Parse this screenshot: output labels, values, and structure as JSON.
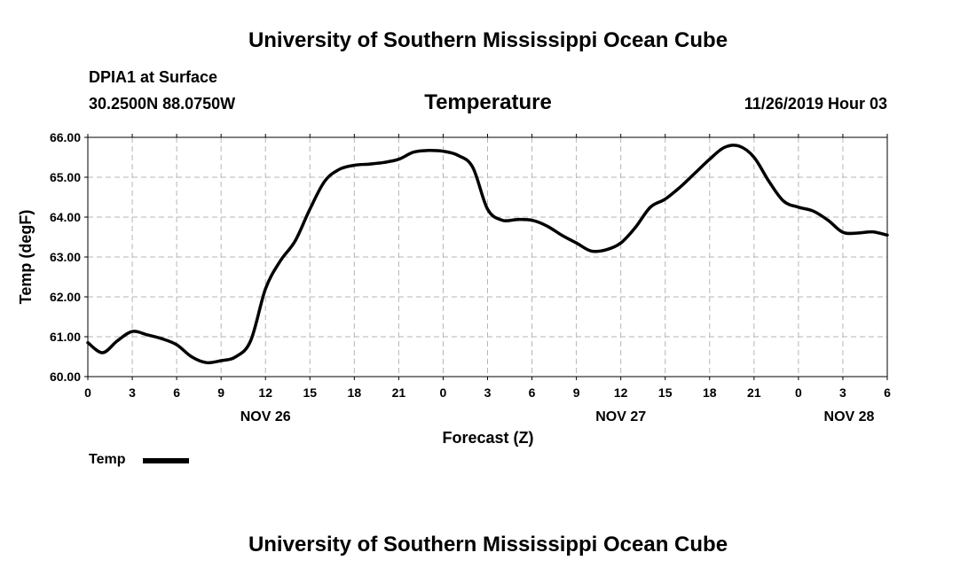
{
  "header": {
    "title_top": "University of Southern Mississippi Ocean Cube",
    "station": "DPIA1 at Surface",
    "location": "30.2500N 88.0750W",
    "timestamp": "11/26/2019 Hour 03",
    "title_bottom": "University of Southern Mississippi Ocean Cube"
  },
  "chart_data": {
    "type": "line",
    "title": "Temperature",
    "xlabel": "Forecast (Z)",
    "ylabel": "Temp (degF)",
    "ylim": [
      60,
      66
    ],
    "xlim": [
      0,
      54
    ],
    "grid": true,
    "legend_placement": "bottom-left",
    "y_ticks": [
      "60.00",
      "61.00",
      "62.00",
      "63.00",
      "64.00",
      "65.00",
      "66.00"
    ],
    "x_ticks": [
      {
        "hour": 0,
        "label": "0"
      },
      {
        "hour": 3,
        "label": "3"
      },
      {
        "hour": 6,
        "label": "6"
      },
      {
        "hour": 9,
        "label": "9"
      },
      {
        "hour": 12,
        "label": "12"
      },
      {
        "hour": 15,
        "label": "15"
      },
      {
        "hour": 18,
        "label": "18"
      },
      {
        "hour": 21,
        "label": "21"
      },
      {
        "hour": 24,
        "label": "0"
      },
      {
        "hour": 27,
        "label": "3"
      },
      {
        "hour": 30,
        "label": "6"
      },
      {
        "hour": 33,
        "label": "9"
      },
      {
        "hour": 36,
        "label": "12"
      },
      {
        "hour": 39,
        "label": "15"
      },
      {
        "hour": 42,
        "label": "18"
      },
      {
        "hour": 45,
        "label": "21"
      },
      {
        "hour": 48,
        "label": "0"
      },
      {
        "hour": 51,
        "label": "3"
      },
      {
        "hour": 54,
        "label": "6"
      }
    ],
    "date_labels": [
      {
        "hour": 12,
        "label": "NOV 26"
      },
      {
        "hour": 36,
        "label": "NOV 27"
      },
      {
        "hour": 54,
        "label": "NOV 28"
      }
    ],
    "series": [
      {
        "name": "Temp",
        "color": "#000000",
        "x": [
          0,
          1,
          2,
          3,
          4,
          5,
          6,
          7,
          8,
          9,
          10,
          11,
          12,
          13,
          14,
          15,
          16,
          17,
          18,
          19,
          20,
          21,
          22,
          23,
          24,
          25,
          26,
          27,
          28,
          29,
          30,
          31,
          32,
          33,
          34,
          35,
          36,
          37,
          38,
          39,
          40,
          41,
          42,
          43,
          44,
          45,
          46,
          47,
          48,
          49,
          50,
          51,
          52,
          53,
          54
        ],
        "values": [
          60.85,
          60.6,
          60.9,
          61.13,
          61.05,
          60.95,
          60.8,
          60.5,
          60.35,
          60.4,
          60.5,
          60.9,
          62.2,
          62.9,
          63.4,
          64.2,
          64.9,
          65.2,
          65.3,
          65.33,
          65.37,
          65.45,
          65.63,
          65.67,
          65.65,
          65.55,
          65.25,
          64.2,
          63.92,
          63.94,
          63.92,
          63.78,
          63.55,
          63.35,
          63.15,
          63.18,
          63.35,
          63.75,
          64.25,
          64.45,
          64.75,
          65.1,
          65.45,
          65.75,
          65.78,
          65.5,
          64.9,
          64.4,
          64.25,
          64.15,
          63.92,
          63.62,
          63.6,
          63.63,
          63.55
        ]
      }
    ]
  }
}
